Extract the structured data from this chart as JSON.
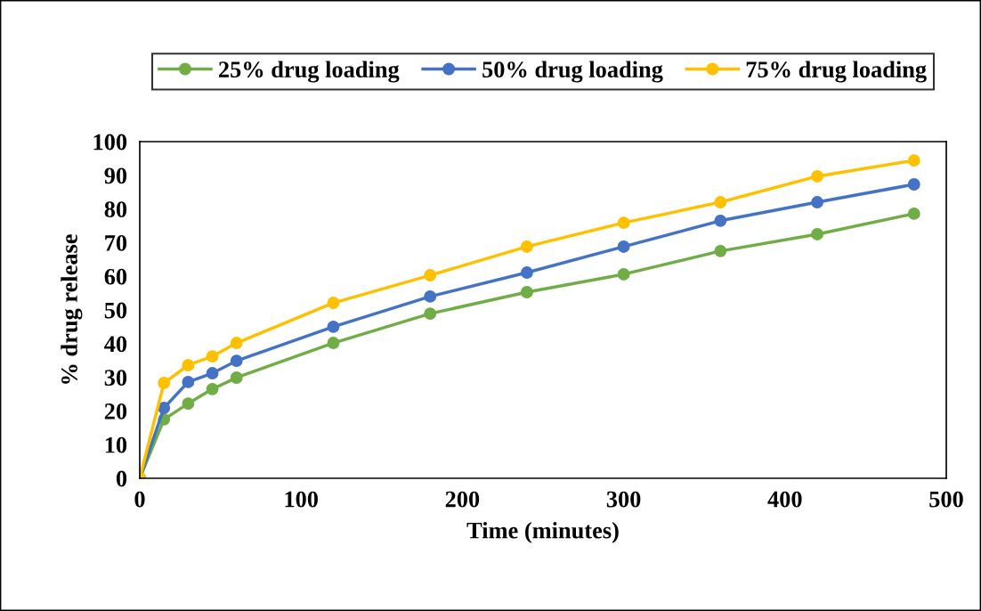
{
  "chart_data": {
    "type": "line",
    "xlabel": "Time (minutes)",
    "ylabel": "% drug release",
    "x": [
      0,
      15,
      30,
      45,
      60,
      120,
      180,
      240,
      300,
      360,
      420,
      480
    ],
    "series": [
      {
        "name": "25% drug loading",
        "color": "#70ad47",
        "values": [
          0,
          17.5,
          22.2,
          26.5,
          29.9,
          40.2,
          48.9,
          55.3,
          60.6,
          67.5,
          72.5,
          78.6
        ]
      },
      {
        "name": "50% drug loading",
        "color": "#4472c4",
        "values": [
          0,
          20.9,
          28.6,
          31.2,
          34.9,
          45.0,
          54.0,
          61.1,
          68.8,
          76.5,
          82.0,
          87.3
        ]
      },
      {
        "name": "75% drug loading",
        "color": "#ffc000",
        "values": [
          0,
          28.3,
          33.6,
          36.2,
          40.2,
          52.1,
          60.3,
          68.8,
          75.9,
          82.0,
          89.7,
          94.4
        ]
      }
    ],
    "xlim": [
      0,
      500
    ],
    "xticks": [
      0,
      100,
      200,
      300,
      400,
      500
    ],
    "ylim": [
      0,
      100
    ],
    "yticks": [
      0,
      10,
      20,
      30,
      40,
      50,
      60,
      70,
      80,
      90,
      100
    ],
    "grid": false,
    "legend": "top",
    "marker": "circle",
    "line_style": "solid"
  }
}
